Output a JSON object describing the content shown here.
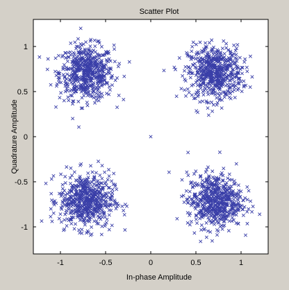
{
  "chart_data": {
    "type": "scatter",
    "title": "Scatter Plot",
    "xlabel": "In-phase Amplitude",
    "ylabel": "Quadrature Amplitude",
    "xlim": [
      -1.3,
      1.3
    ],
    "ylim": [
      -1.3,
      1.3
    ],
    "x_ticks": [
      -1,
      -0.5,
      0,
      0.5,
      1
    ],
    "y_ticks": [
      1,
      0.5,
      0,
      -0.5,
      -1
    ],
    "x_tick_labels": [
      "-1",
      "-0.5",
      "0",
      "0.5",
      "1"
    ],
    "y_tick_labels": [
      "1",
      "0.5",
      "0",
      "-0.5",
      "-1"
    ],
    "marker": "x",
    "marker_color": "#3a3fa8",
    "grid": false,
    "series": [
      {
        "points": [
          [
            0.0,
            0.0
          ]
        ],
        "clusters": [
          {
            "center": [
              -0.71,
              0.71
            ],
            "spread": 0.15,
            "count": 600
          },
          {
            "center": [
              0.71,
              0.71
            ],
            "spread": 0.15,
            "count": 600
          },
          {
            "center": [
              -0.71,
              -0.71
            ],
            "spread": 0.15,
            "count": 600
          },
          {
            "center": [
              0.71,
              -0.71
            ],
            "spread": 0.15,
            "count": 600
          }
        ]
      }
    ]
  },
  "colors": {
    "figure_background": "#d4d0c8",
    "plot_background": "#ffffff",
    "axes_color": "#000000",
    "marker_color": "#3a3fa8"
  }
}
